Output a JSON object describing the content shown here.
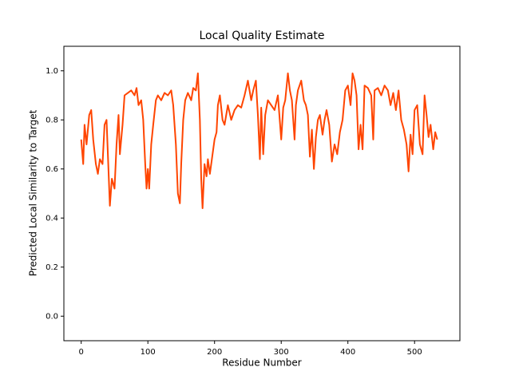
{
  "chart_data": {
    "type": "line",
    "title": "Local Quality Estimate",
    "x_label": "Residue Number",
    "y_label": "Predicted Local Similarity to Target",
    "xlim": [
      -26,
      568
    ],
    "ylim": [
      -0.1,
      1.1
    ],
    "xticks": [
      0,
      100,
      200,
      300,
      400,
      500
    ],
    "yticks": [
      {
        "value": 0,
        "label": "0.0"
      },
      0.2,
      0.4,
      0.6,
      0.8,
      {
        "value": 1,
        "label": "1.0"
      }
    ],
    "grid": false,
    "series": [
      {
        "color": "#ff4500",
        "x": [
          0,
          3,
          5,
          8,
          12,
          15,
          18,
          22,
          25,
          28,
          32,
          35,
          38,
          40,
          43,
          46,
          50,
          53,
          56,
          58,
          62,
          65,
          70,
          75,
          80,
          83,
          86,
          90,
          93,
          96,
          98,
          100,
          102,
          105,
          108,
          112,
          115,
          120,
          125,
          130,
          135,
          138,
          142,
          145,
          148,
          150,
          153,
          156,
          160,
          165,
          168,
          172,
          175,
          178,
          180,
          182,
          185,
          188,
          190,
          193,
          196,
          200,
          203,
          205,
          208,
          212,
          215,
          220,
          225,
          230,
          235,
          240,
          245,
          250,
          255,
          258,
          262,
          265,
          268,
          270,
          273,
          276,
          280,
          285,
          290,
          295,
          300,
          303,
          306,
          310,
          313,
          316,
          320,
          322,
          325,
          330,
          334,
          337,
          340,
          343,
          346,
          349,
          352,
          355,
          358,
          362,
          365,
          368,
          372,
          376,
          380,
          384,
          388,
          392,
          396,
          400,
          404,
          407,
          410,
          413,
          416,
          419,
          422,
          425,
          430,
          435,
          438,
          440,
          445,
          450,
          455,
          460,
          464,
          468,
          472,
          476,
          480,
          484,
          488,
          491,
          494,
          497,
          500,
          504,
          508,
          512,
          515,
          518,
          521,
          524,
          528,
          531,
          534
        ],
        "values": [
          0.72,
          0.62,
          0.78,
          0.7,
          0.82,
          0.84,
          0.72,
          0.62,
          0.58,
          0.64,
          0.62,
          0.78,
          0.8,
          0.66,
          0.45,
          0.56,
          0.52,
          0.7,
          0.82,
          0.66,
          0.78,
          0.9,
          0.91,
          0.92,
          0.9,
          0.93,
          0.86,
          0.88,
          0.8,
          0.62,
          0.52,
          0.6,
          0.52,
          0.7,
          0.78,
          0.88,
          0.9,
          0.88,
          0.91,
          0.9,
          0.92,
          0.86,
          0.7,
          0.5,
          0.46,
          0.62,
          0.8,
          0.88,
          0.91,
          0.88,
          0.93,
          0.92,
          0.99,
          0.8,
          0.56,
          0.44,
          0.62,
          0.57,
          0.64,
          0.58,
          0.64,
          0.72,
          0.75,
          0.86,
          0.9,
          0.8,
          0.78,
          0.86,
          0.8,
          0.84,
          0.86,
          0.85,
          0.9,
          0.96,
          0.88,
          0.92,
          0.96,
          0.82,
          0.64,
          0.85,
          0.66,
          0.82,
          0.88,
          0.86,
          0.84,
          0.9,
          0.72,
          0.85,
          0.88,
          0.99,
          0.92,
          0.88,
          0.72,
          0.86,
          0.92,
          0.96,
          0.88,
          0.86,
          0.82,
          0.65,
          0.76,
          0.6,
          0.73,
          0.8,
          0.82,
          0.74,
          0.8,
          0.84,
          0.78,
          0.63,
          0.7,
          0.66,
          0.75,
          0.8,
          0.92,
          0.94,
          0.86,
          0.99,
          0.96,
          0.9,
          0.68,
          0.78,
          0.68,
          0.94,
          0.93,
          0.9,
          0.72,
          0.92,
          0.93,
          0.9,
          0.94,
          0.92,
          0.86,
          0.91,
          0.84,
          0.92,
          0.8,
          0.76,
          0.7,
          0.59,
          0.74,
          0.66,
          0.84,
          0.86,
          0.7,
          0.66,
          0.9,
          0.82,
          0.73,
          0.78,
          0.68,
          0.75,
          0.72
        ]
      }
    ]
  }
}
